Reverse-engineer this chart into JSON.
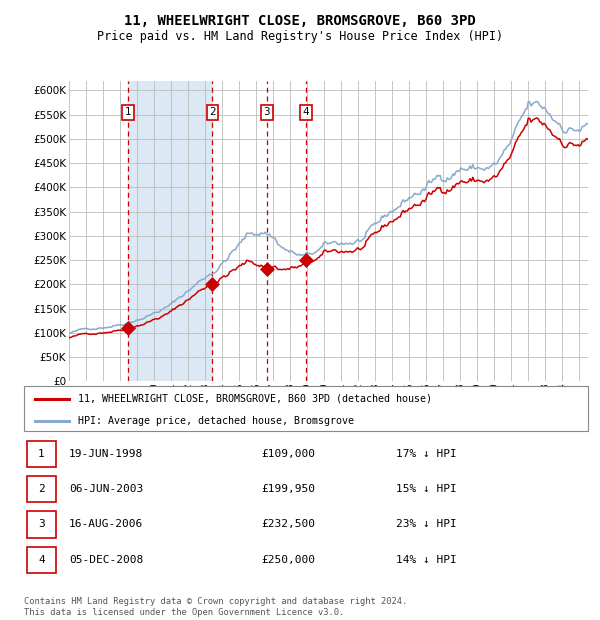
{
  "title": "11, WHEELWRIGHT CLOSE, BROMSGROVE, B60 3PD",
  "subtitle": "Price paid vs. HM Land Registry's House Price Index (HPI)",
  "legend_property": "11, WHEELWRIGHT CLOSE, BROMSGROVE, B60 3PD (detached house)",
  "legend_hpi": "HPI: Average price, detached house, Bromsgrove",
  "footer": "Contains HM Land Registry data © Crown copyright and database right 2024.\nThis data is licensed under the Open Government Licence v3.0.",
  "property_color": "#cc0000",
  "hpi_color": "#88aacc",
  "background_color": "#ffffff",
  "plot_background": "#ffffff",
  "shaded_region_color": "#dce9f5",
  "grid_color": "#bbbbbb",
  "sale_points": [
    {
      "label": "1",
      "date": "19-JUN-1998",
      "price": 109000,
      "x": 1998.46,
      "hpi_pct": "17% ↓ HPI"
    },
    {
      "label": "2",
      "date": "06-JUN-2003",
      "price": 199950,
      "x": 2003.43,
      "hpi_pct": "15% ↓ HPI"
    },
    {
      "label": "3",
      "date": "16-AUG-2006",
      "price": 232500,
      "x": 2006.62,
      "hpi_pct": "23% ↓ HPI"
    },
    {
      "label": "4",
      "date": "05-DEC-2008",
      "price": 250000,
      "x": 2008.92,
      "hpi_pct": "14% ↓ HPI"
    }
  ],
  "xmin": 1995.0,
  "xmax": 2025.5,
  "ymin": 0,
  "ymax": 620000,
  "yticks": [
    0,
    50000,
    100000,
    150000,
    200000,
    250000,
    300000,
    350000,
    400000,
    450000,
    500000,
    550000,
    600000
  ]
}
